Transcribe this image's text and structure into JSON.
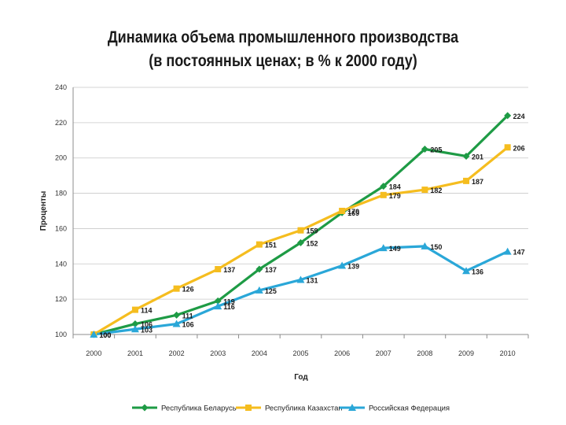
{
  "chart_data": {
    "type": "line",
    "title": "Динамика объема промышленного производства",
    "subtitle": "(в постоянных ценах; в % к 2000 году)",
    "xlabel": "Год",
    "ylabel": "Проценты",
    "x": [
      "2000",
      "2001",
      "2002",
      "2003",
      "2004",
      "2005",
      "2006",
      "2007",
      "2008",
      "2009",
      "2010"
    ],
    "ylim": [
      100,
      240
    ],
    "yticks": [
      100,
      120,
      140,
      160,
      180,
      200,
      220,
      240
    ],
    "grid": true,
    "legend_position": "bottom",
    "series": [
      {
        "name": "Республика Беларусь",
        "color": "#1e9b45",
        "marker": "diamond",
        "values": [
          100,
          106,
          111,
          119,
          137,
          152,
          169,
          184,
          205,
          201,
          224
        ]
      },
      {
        "name": "Республика Казахстан",
        "color": "#f5bd1f",
        "marker": "square",
        "values": [
          100,
          114,
          126,
          137,
          151,
          159,
          170,
          179,
          182,
          187,
          206
        ]
      },
      {
        "name": "Российская Федерация",
        "color": "#2aa7d8",
        "marker": "triangle",
        "values": [
          100,
          103,
          106,
          116,
          125,
          131,
          139,
          149,
          150,
          136,
          147
        ]
      }
    ]
  }
}
